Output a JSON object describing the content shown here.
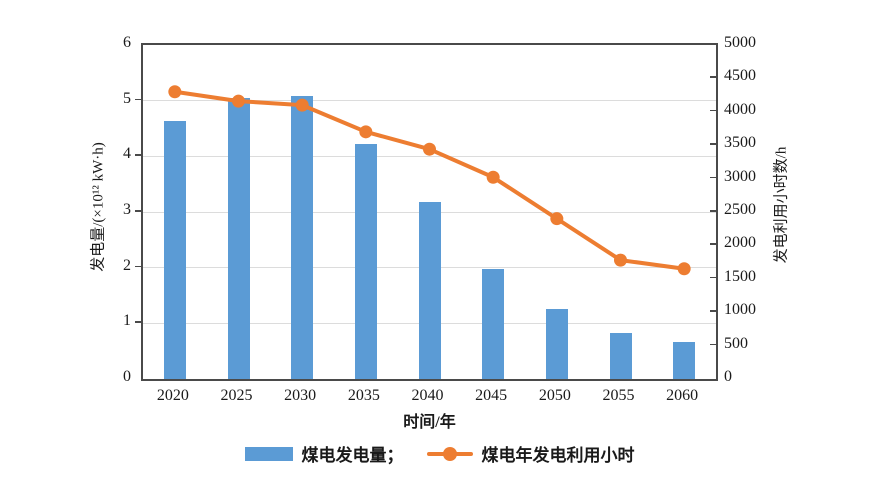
{
  "colors": {
    "bar": "#5b9bd5",
    "line": "#ed7d31",
    "axis": "#4a4a4a",
    "grid": "#dcdcdc",
    "text": "#1a1a1a",
    "background": "#ffffff"
  },
  "chart_data": {
    "type": "bar",
    "subtype": "bar-line-combo",
    "categories": [
      "2020",
      "2025",
      "2030",
      "2035",
      "2040",
      "2045",
      "2050",
      "2055",
      "2060"
    ],
    "series": [
      {
        "name": "煤电发电量",
        "type": "bar",
        "axis": "left",
        "color": "#5b9bd5",
        "values": [
          4.63,
          5.05,
          5.08,
          4.23,
          3.18,
          1.98,
          1.25,
          0.82,
          0.66
        ]
      },
      {
        "name": "煤电年发电利用小时",
        "type": "line",
        "axis": "right",
        "color": "#ed7d31",
        "marker": "circle",
        "values": [
          4300,
          4160,
          4100,
          3700,
          3440,
          3020,
          2400,
          1780,
          1650
        ]
      }
    ],
    "left_axis": {
      "label": "发电量/(×10¹² kW·h)",
      "min": 0,
      "max": 6,
      "step": 1
    },
    "right_axis": {
      "label": "发电利用小时数/h",
      "min": 0,
      "max": 5000,
      "step": 500
    },
    "x_axis": {
      "label": "时间/年"
    },
    "legend": [
      "煤电发电量；",
      "煤电年发电利用小时"
    ],
    "legend_position": "bottom",
    "grid": true,
    "gridlines_at": [
      1,
      2,
      3,
      4,
      5
    ]
  }
}
